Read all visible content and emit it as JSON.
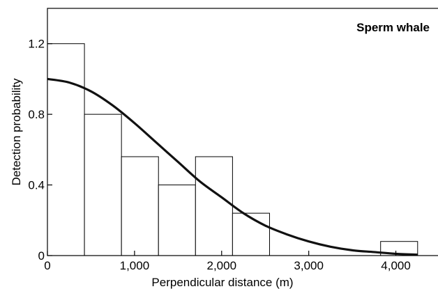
{
  "chart_data": {
    "type": "bar",
    "annotation": "Sperm whale",
    "xlabel": "Perpendicular distance (m)",
    "ylabel": "Detection probability",
    "xlim": [
      0,
      4500
    ],
    "ylim": [
      0,
      1.4
    ],
    "xticks": [
      0,
      1000,
      2000,
      3000,
      4000
    ],
    "xtick_labels": [
      "0",
      "1,000",
      "2,000",
      "3,000",
      "4,000"
    ],
    "yticks": [
      0,
      0.4,
      0.8,
      1.2
    ],
    "ytick_labels": [
      "0",
      "0.4",
      "0.8",
      "1.2"
    ],
    "grid": false,
    "histogram": {
      "bin_edges": [
        0,
        425,
        850,
        1275,
        1700,
        2125,
        2550,
        2975,
        3400,
        3825,
        4250
      ],
      "values": [
        1.2,
        0.8,
        0.56,
        0.4,
        0.56,
        0.24,
        0,
        0,
        0,
        0.08
      ]
    },
    "fitted_curve": {
      "x": [
        0,
        250,
        500,
        750,
        1000,
        1250,
        1500,
        1750,
        2000,
        2250,
        2500,
        2750,
        3000,
        3250,
        3500,
        3750,
        4000,
        4250
      ],
      "y": [
        1.0,
        0.98,
        0.93,
        0.85,
        0.75,
        0.64,
        0.53,
        0.42,
        0.33,
        0.24,
        0.17,
        0.12,
        0.08,
        0.05,
        0.03,
        0.02,
        0.01,
        0.005
      ]
    },
    "colors": {
      "bar_fill": "#ffffff",
      "bar_stroke": "#000000",
      "curve": "#111111",
      "axis": "#000000"
    }
  }
}
